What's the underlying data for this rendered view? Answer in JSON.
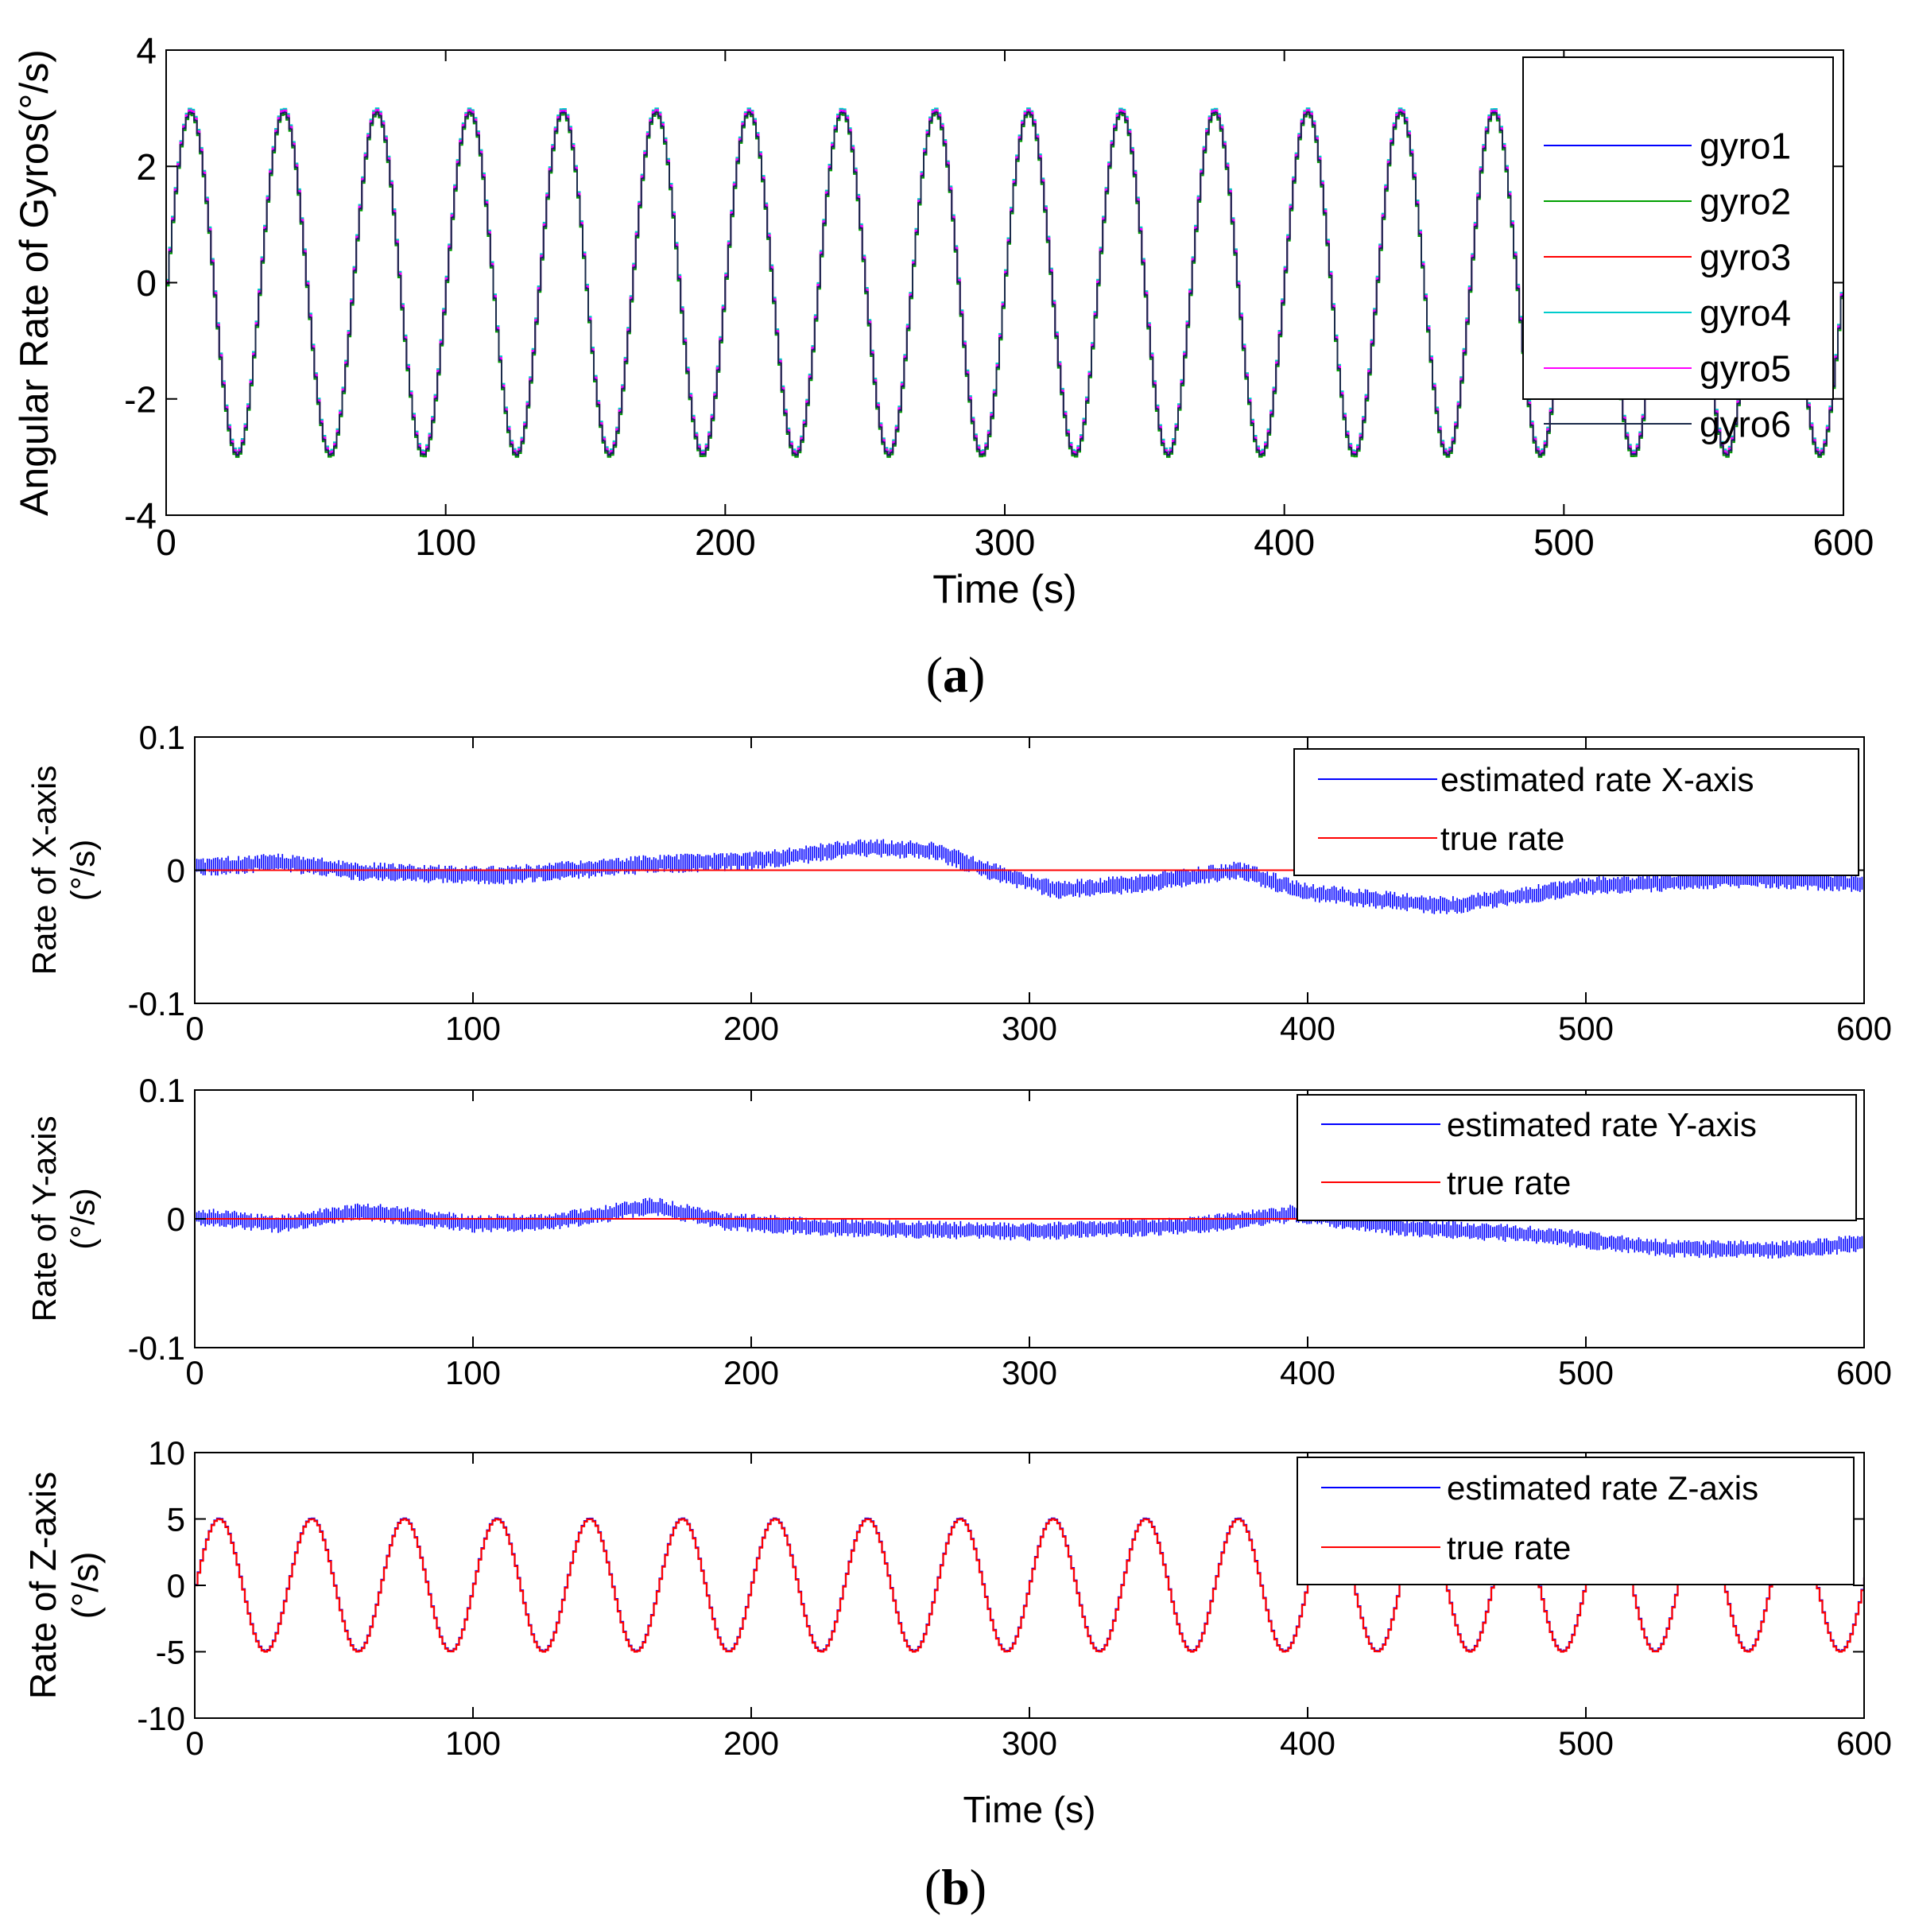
{
  "captions": {
    "a": "a",
    "b": "b"
  },
  "chart_data": [
    {
      "id": "gyros",
      "type": "line",
      "title": "",
      "xlabel": "Time (s)",
      "ylabel": "Angular Rate of Gyros(°/s)",
      "xlim": [
        0,
        600
      ],
      "ylim": [
        -4,
        4
      ],
      "xticks": [
        0,
        100,
        200,
        300,
        400,
        500,
        600
      ],
      "yticks": [
        -4,
        -2,
        0,
        2,
        4
      ],
      "x_tick_labels": [
        "0",
        "100",
        "200",
        "300",
        "400",
        "500",
        "600"
      ],
      "y_tick_labels": [
        "-4",
        "-2",
        "0",
        "2",
        "4"
      ],
      "legend_position": "top-right",
      "signal": {
        "form": "sine",
        "amplitude": 2.95,
        "period_s": 33.3,
        "phase_offset_s": 0,
        "sample_step_s": 1,
        "x_range": [
          0,
          600
        ]
      },
      "series": [
        {
          "name": "gyro1",
          "color": "#0000ff",
          "offset": 0.0
        },
        {
          "name": "gyro2",
          "color": "#00a000",
          "offset": -0.05
        },
        {
          "name": "gyro3",
          "color": "#ff0000",
          "offset": 0.03
        },
        {
          "name": "gyro4",
          "color": "#00cccc",
          "offset": 0.05
        },
        {
          "name": "gyro5",
          "color": "#ff00ff",
          "offset": 0.02
        },
        {
          "name": "gyro6",
          "color": "#1a2a4a",
          "offset": -0.02
        }
      ]
    },
    {
      "id": "xaxis",
      "type": "line",
      "title": "",
      "xlabel": "",
      "ylabel": [
        "Rate of X-axis",
        "(°/s)"
      ],
      "xlim": [
        0,
        600
      ],
      "ylim": [
        -0.1,
        0.1
      ],
      "xticks": [
        0,
        100,
        200,
        300,
        400,
        500,
        600
      ],
      "yticks": [
        -0.1,
        0,
        0.1
      ],
      "x_tick_labels": [
        "0",
        "100",
        "200",
        "300",
        "400",
        "500",
        "600"
      ],
      "y_tick_labels": [
        "-0.1",
        "0",
        "0.1"
      ],
      "legend_position": "top-right",
      "series": [
        {
          "name": "estimated rate X-axis",
          "color": "#0000ff",
          "noise_amplitude": 0.006,
          "trend_x": [
            0,
            30,
            60,
            110,
            160,
            200,
            240,
            265,
            285,
            310,
            340,
            375,
            400,
            450,
            500,
            560,
            600
          ],
          "trend_y": [
            0.002,
            0.006,
            -0.001,
            -0.004,
            0.004,
            0.007,
            0.017,
            0.015,
            0.0,
            -0.015,
            -0.01,
            0.0,
            -0.017,
            -0.027,
            -0.012,
            -0.006,
            -0.01
          ]
        },
        {
          "name": "true rate",
          "color": "#ff0000",
          "x": [
            0,
            600
          ],
          "y": [
            0,
            0
          ]
        }
      ]
    },
    {
      "id": "yaxis",
      "type": "line",
      "title": "",
      "xlabel": "",
      "ylabel": [
        "Rate of Y-axis",
        "(°/s)"
      ],
      "xlim": [
        0,
        600
      ],
      "ylim": [
        -0.1,
        0.1
      ],
      "xticks": [
        0,
        100,
        200,
        300,
        400,
        500,
        600
      ],
      "yticks": [
        -0.1,
        0,
        0.1
      ],
      "x_tick_labels": [
        "0",
        "100",
        "200",
        "300",
        "400",
        "500",
        "600"
      ],
      "y_tick_labels": [
        "-0.1",
        "0",
        "0.1"
      ],
      "legend_position": "top-right",
      "series": [
        {
          "name": "estimated rate Y-axis",
          "color": "#0000ff",
          "noise_amplitude": 0.006,
          "trend_x": [
            0,
            30,
            60,
            100,
            130,
            165,
            190,
            230,
            300,
            360,
            395,
            430,
            480,
            530,
            570,
            600
          ],
          "trend_y": [
            0.002,
            -0.004,
            0.006,
            -0.004,
            -0.002,
            0.01,
            -0.002,
            -0.007,
            -0.01,
            -0.005,
            0.004,
            -0.006,
            -0.012,
            -0.023,
            -0.024,
            -0.019
          ]
        },
        {
          "name": "true rate",
          "color": "#ff0000",
          "x": [
            0,
            600
          ],
          "y": [
            0,
            0
          ]
        }
      ]
    },
    {
      "id": "zaxis",
      "type": "line",
      "title": "",
      "xlabel": "Time (s)",
      "ylabel": [
        "Rate of Z-axis",
        "(°/s)"
      ],
      "xlim": [
        0,
        600
      ],
      "ylim": [
        -10,
        10
      ],
      "xticks": [
        0,
        100,
        200,
        300,
        400,
        500,
        600
      ],
      "yticks": [
        -10,
        -5,
        0,
        5,
        10
      ],
      "x_tick_labels": [
        "0",
        "100",
        "200",
        "300",
        "400",
        "500",
        "600"
      ],
      "y_tick_labels": [
        "-10",
        "-5",
        "0",
        "5",
        "10"
      ],
      "legend_position": "top-right",
      "signal": {
        "form": "sine",
        "amplitude": 5,
        "period_s": 33.3,
        "phase_offset_s": 0,
        "sample_step_s": 1,
        "x_range": [
          0,
          600
        ]
      },
      "series": [
        {
          "name": "estimated rate Z-axis",
          "color": "#0000ff",
          "offset": 0.05
        },
        {
          "name": "true rate",
          "color": "#ff0000",
          "offset": 0
        }
      ]
    }
  ]
}
